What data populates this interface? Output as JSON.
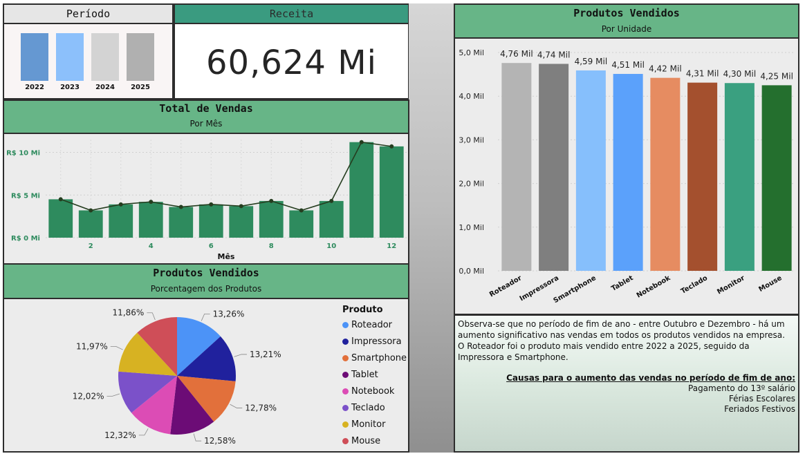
{
  "periodo": {
    "title": "Período",
    "years": [
      {
        "label": "2022",
        "color": "#6598d2"
      },
      {
        "label": "2023",
        "color": "#8cc0fb"
      },
      {
        "label": "2024",
        "color": "#d3d3d3"
      },
      {
        "label": "2025",
        "color": "#b0b0b0"
      }
    ]
  },
  "receita": {
    "title": "Receita",
    "value": "60,624 Mi"
  },
  "total_vendas": {
    "title": "Total de Vendas",
    "subtitle": "Por Mês"
  },
  "produtos_pie": {
    "title": "Produtos Vendidos",
    "subtitle": "Porcentagem dos Produtos",
    "legend_title": "Produto"
  },
  "produtos_bar": {
    "title": "Produtos Vendidos",
    "subtitle": "Por Unidade"
  },
  "notes": {
    "paragraph1": "Observa-se que no período de fim de ano - entre Outubro e Dezembro - há um aumento significativo nas vendas em todos os produtos vendidos na empresa.",
    "paragraph2": "O Roteador foi o produto mais vendido entre 2022 a 2025, seguido da Impressora e Smartphone.",
    "causes_title": "Causas para o aumento das vendas no período de fim de ano:",
    "causes": [
      "Pagamento do 13º salário",
      "Férias Escolares",
      "Feriados Festivos"
    ]
  },
  "chart_data": [
    {
      "type": "bar",
      "id": "vendas-mes",
      "xlabel": "Mês",
      "ylabel": "",
      "categories": [
        1,
        2,
        3,
        4,
        5,
        6,
        7,
        8,
        9,
        10,
        11,
        12
      ],
      "x_tick_labels": [
        "2",
        "4",
        "6",
        "8",
        "10",
        "12"
      ],
      "y_tick_labels": [
        "R$ 0 Mi",
        "R$ 5 Mi",
        "R$ 10 Mi"
      ],
      "y_ticks": [
        0,
        5,
        10
      ],
      "ylim": [
        0,
        11.5
      ],
      "series": [
        {
          "values": [
            4.5,
            3.2,
            3.9,
            4.2,
            3.6,
            3.9,
            3.7,
            4.3,
            3.2,
            4.3,
            11.2,
            10.7
          ],
          "color": "#2e8b5e",
          "kind": "bar"
        },
        {
          "values": [
            4.5,
            3.2,
            3.9,
            4.2,
            3.6,
            3.9,
            3.7,
            4.3,
            3.2,
            4.3,
            11.2,
            10.7
          ],
          "color": "#253d1f",
          "kind": "line"
        }
      ],
      "grid": true
    },
    {
      "type": "pie",
      "id": "produtos-pct",
      "slices": [
        {
          "label": "Roteador",
          "value": 13.26,
          "display": "13,26%",
          "color": "#4c93f7"
        },
        {
          "label": "Impressora",
          "value": 13.21,
          "display": "13,21%",
          "color": "#20219d"
        },
        {
          "label": "Smartphone",
          "value": 12.78,
          "display": "12,78%",
          "color": "#e2703b"
        },
        {
          "label": "Tablet",
          "value": 12.58,
          "display": "12,58%",
          "color": "#6c0c76"
        },
        {
          "label": "Notebook",
          "value": 12.32,
          "display": "12,32%",
          "color": "#dc4cb5"
        },
        {
          "label": "Teclado",
          "value": 12.02,
          "display": "12,02%",
          "color": "#7b51c9"
        },
        {
          "label": "Monitor",
          "value": 11.97,
          "display": "11,97%",
          "color": "#d7b222"
        },
        {
          "label": "Mouse",
          "value": 11.86,
          "display": "11,86%",
          "color": "#cf4e58"
        }
      ],
      "legend": "right"
    },
    {
      "type": "bar",
      "id": "produtos-unidade",
      "xlabel": "",
      "ylabel": "",
      "categories": [
        "Roteador",
        "Impressora",
        "Smartphone",
        "Tablet",
        "Notebook",
        "Teclado",
        "Monitor",
        "Mouse"
      ],
      "values": [
        4.76,
        4.74,
        4.59,
        4.51,
        4.42,
        4.31,
        4.3,
        4.25
      ],
      "data_labels": [
        "4,76 Mil",
        "4,74 Mil",
        "4,59 Mil",
        "4,51 Mil",
        "4,42 Mil",
        "4,31 Mil",
        "4,30 Mil",
        "4,25 Mil"
      ],
      "colors": [
        "#b4b4b4",
        "#7f7f7f",
        "#86bffc",
        "#5ba1fb",
        "#e68c61",
        "#a4502e",
        "#3aa080",
        "#246f2e"
      ],
      "y_ticks": [
        0,
        1,
        2,
        3,
        4,
        5
      ],
      "y_tick_labels": [
        "0,0 Mil",
        "1,0 Mil",
        "2,0 Mil",
        "3,0 Mil",
        "4,0 Mil",
        "5,0 Mil"
      ],
      "ylim": [
        0,
        5
      ],
      "grid": true
    }
  ]
}
